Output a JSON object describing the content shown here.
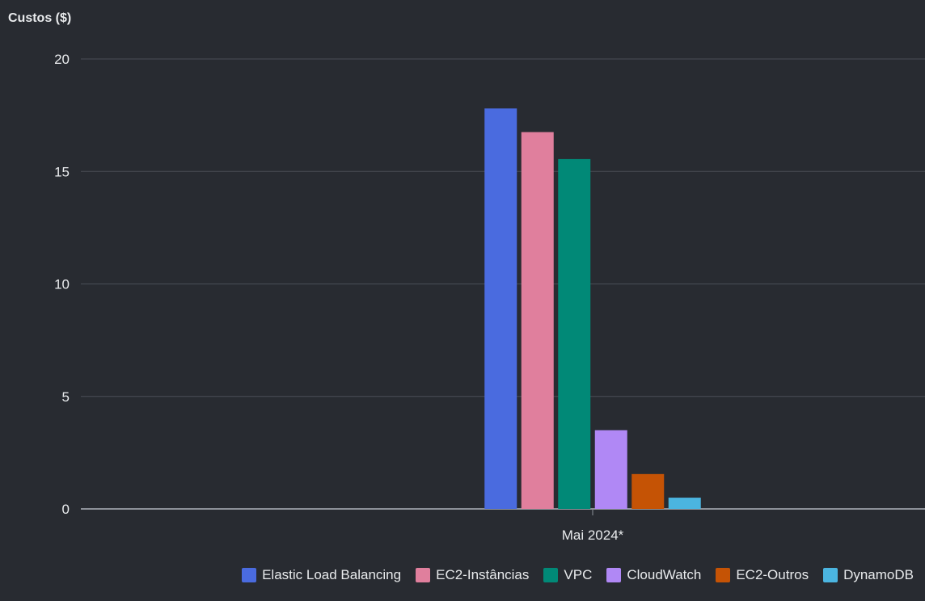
{
  "chart_data": {
    "type": "bar",
    "title": "",
    "ylabel": "Custos ($)",
    "xlabel": "",
    "categories": [
      "Mai 2024*"
    ],
    "ylim": [
      0,
      20
    ],
    "yticks": [
      0,
      5,
      10,
      15,
      20
    ],
    "grid": true,
    "legend_position": "bottom-right",
    "series": [
      {
        "name": "Elastic Load Balancing",
        "values": [
          17.8
        ],
        "color": "#4a6bdf"
      },
      {
        "name": "EC2-Instâncias",
        "values": [
          16.75
        ],
        "color": "#e07f9d"
      },
      {
        "name": "VPC",
        "values": [
          15.55
        ],
        "color": "#018977"
      },
      {
        "name": "CloudWatch",
        "values": [
          3.5
        ],
        "color": "#b088f5"
      },
      {
        "name": "EC2-Outros",
        "values": [
          1.55
        ],
        "color": "#c55305"
      },
      {
        "name": "DynamoDB",
        "values": [
          0.5
        ],
        "color": "#4bb5e0"
      }
    ]
  }
}
